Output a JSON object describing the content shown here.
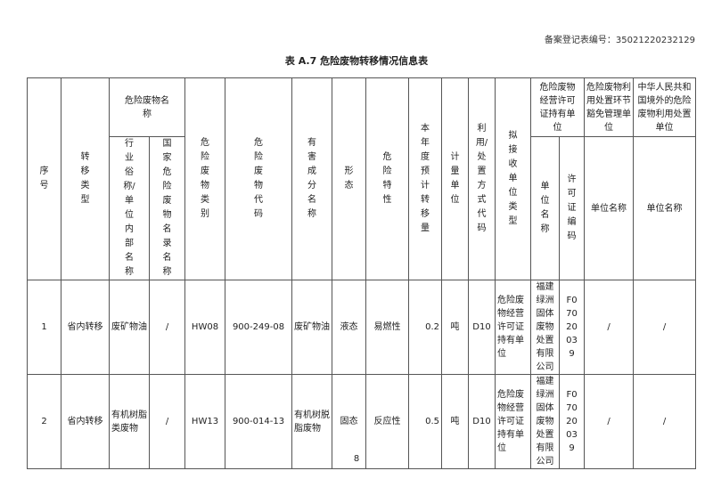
{
  "registration": "备案登记表编号：35021220232129",
  "title": "表 A.7 危险废物转移情况信息表",
  "headers": {
    "seq": "序号",
    "transfer_type": "转移类型",
    "waste_name": "危险废物名称",
    "industry_name": "行业俗称/单位内部名称",
    "national_name": "国家危险废物名录名称",
    "category": "危险废物类别",
    "code": "危险废物代码",
    "harmful": "有害成分名称",
    "form": "形态",
    "property": "危险特性",
    "amount": "本年度预计转移量",
    "unit": "计量单位",
    "method": "利用/处置方式代码",
    "receiver_type": "拟接收单位类型",
    "licensed": "危险废物经营许可证持有单位",
    "licensed_name": "单位名称",
    "license_code": "许可证编码",
    "exempt": "危险废物利用处置环节豁免管理单位",
    "exempt_name": "单位名称",
    "foreign": "中华人民共和国境外的危险废物利用处置单位",
    "foreign_name": "单位名称"
  },
  "rows": [
    {
      "seq": "1",
      "transfer_type": "省内转移",
      "industry_name": "废矿物油",
      "national_name": "/",
      "category": "HW08",
      "code": "900-249-08",
      "harmful": "废矿物油",
      "form": "液态",
      "property": "易燃性",
      "amount": "0.2",
      "unit": "吨",
      "method": "D10",
      "receiver_type": "危险废物经营许可证持有单位",
      "licensed_name": "福建绿洲固体废物处置有限公司",
      "license_code": "F07020039",
      "exempt_name": "/",
      "foreign_name": "/"
    },
    {
      "seq": "2",
      "transfer_type": "省内转移",
      "industry_name": "有机树脂类废物",
      "national_name": "/",
      "category": "HW13",
      "code": "900-014-13",
      "harmful": "有机树脱脂废物",
      "form": "固态",
      "property": "反应性",
      "amount": "0.5",
      "unit": "吨",
      "method": "D10",
      "receiver_type": "危险废物经营许可证持有单位",
      "licensed_name": "福建绿洲固体废物处置有限公司",
      "license_code": "F07020039",
      "exempt_name": "/",
      "foreign_name": "/"
    }
  ],
  "page_number": "8"
}
